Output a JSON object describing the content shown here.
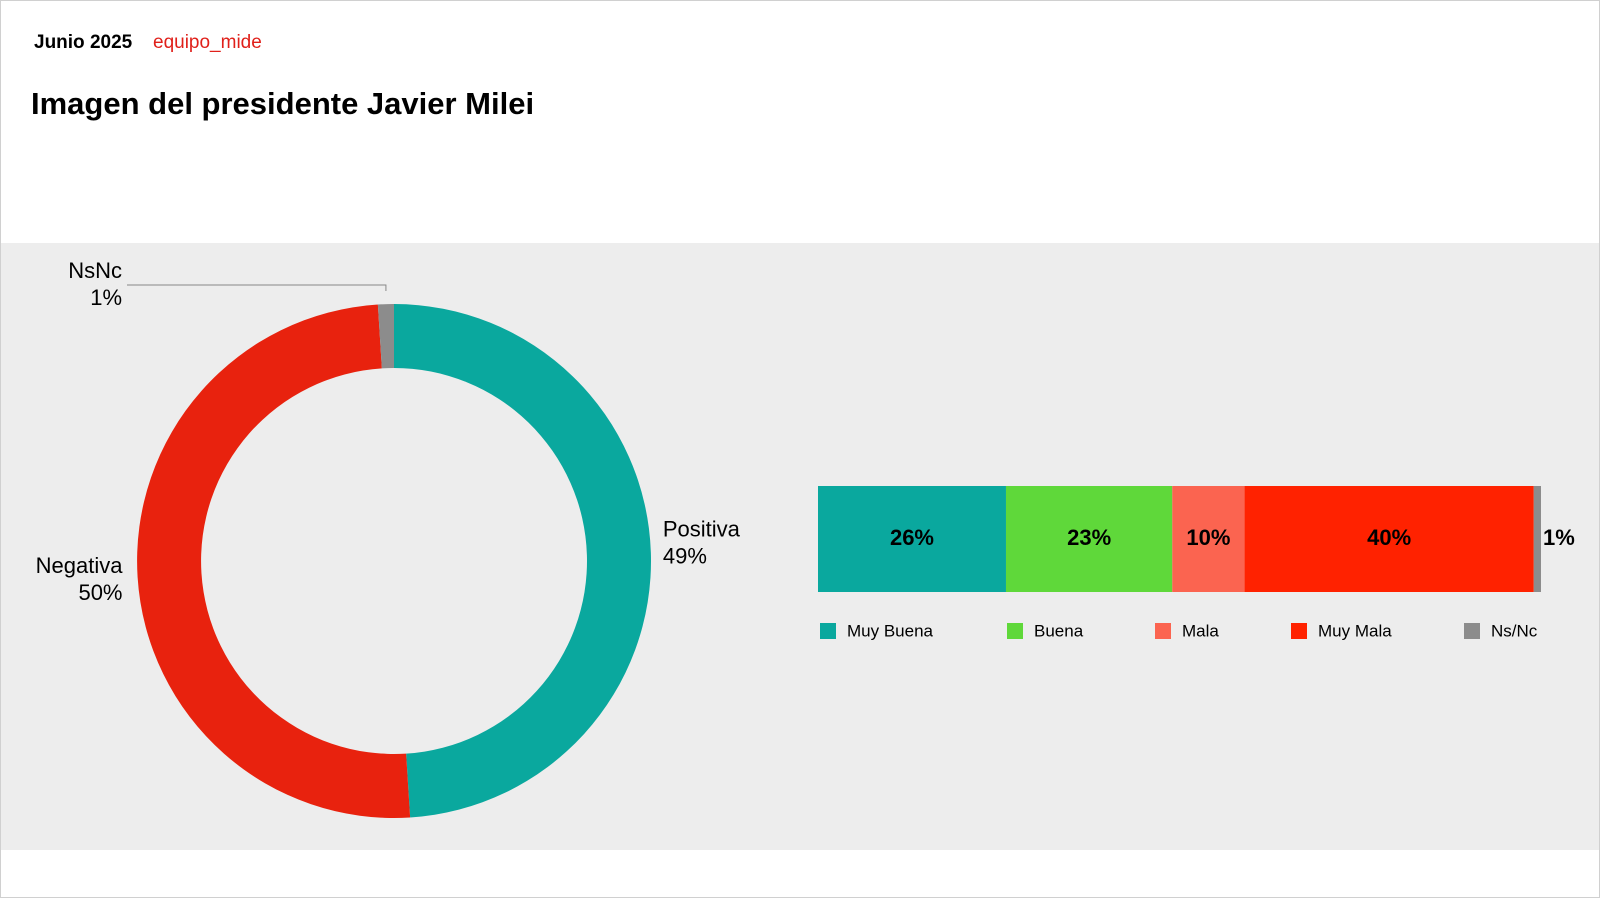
{
  "header": {
    "date": "Junio 2025",
    "source": "equipo_mide",
    "title": "Imagen del presidente Javier Milei"
  },
  "chart_data": [
    {
      "type": "pie",
      "donut": true,
      "categories": [
        "Positiva",
        "Negativa",
        "NsNc"
      ],
      "values": [
        49,
        50,
        1
      ],
      "value_labels": [
        "49%",
        "50%",
        "1%"
      ],
      "colors": [
        "#0aa89e",
        "#e8220e",
        "#8c8c8c"
      ]
    },
    {
      "type": "bar",
      "orientation": "horizontal",
      "stacked": true,
      "legend": "bottom",
      "series": [
        {
          "name": "Muy Buena",
          "color": "#0aa89e",
          "values": [
            26
          ],
          "value_labels": [
            "26%"
          ]
        },
        {
          "name": "Buena",
          "color": "#5fd83a",
          "values": [
            23
          ],
          "value_labels": [
            "23%"
          ]
        },
        {
          "name": "Mala",
          "color": "#fb6450",
          "values": [
            10
          ],
          "value_labels": [
            "10%"
          ]
        },
        {
          "name": "Muy Mala",
          "color": "#ff2200",
          "values": [
            40
          ],
          "value_labels": [
            "40%"
          ]
        },
        {
          "name": "Ns/Nc",
          "color": "#8c8c8c",
          "values": [
            1
          ],
          "value_labels": [
            "1%"
          ]
        }
      ]
    }
  ]
}
